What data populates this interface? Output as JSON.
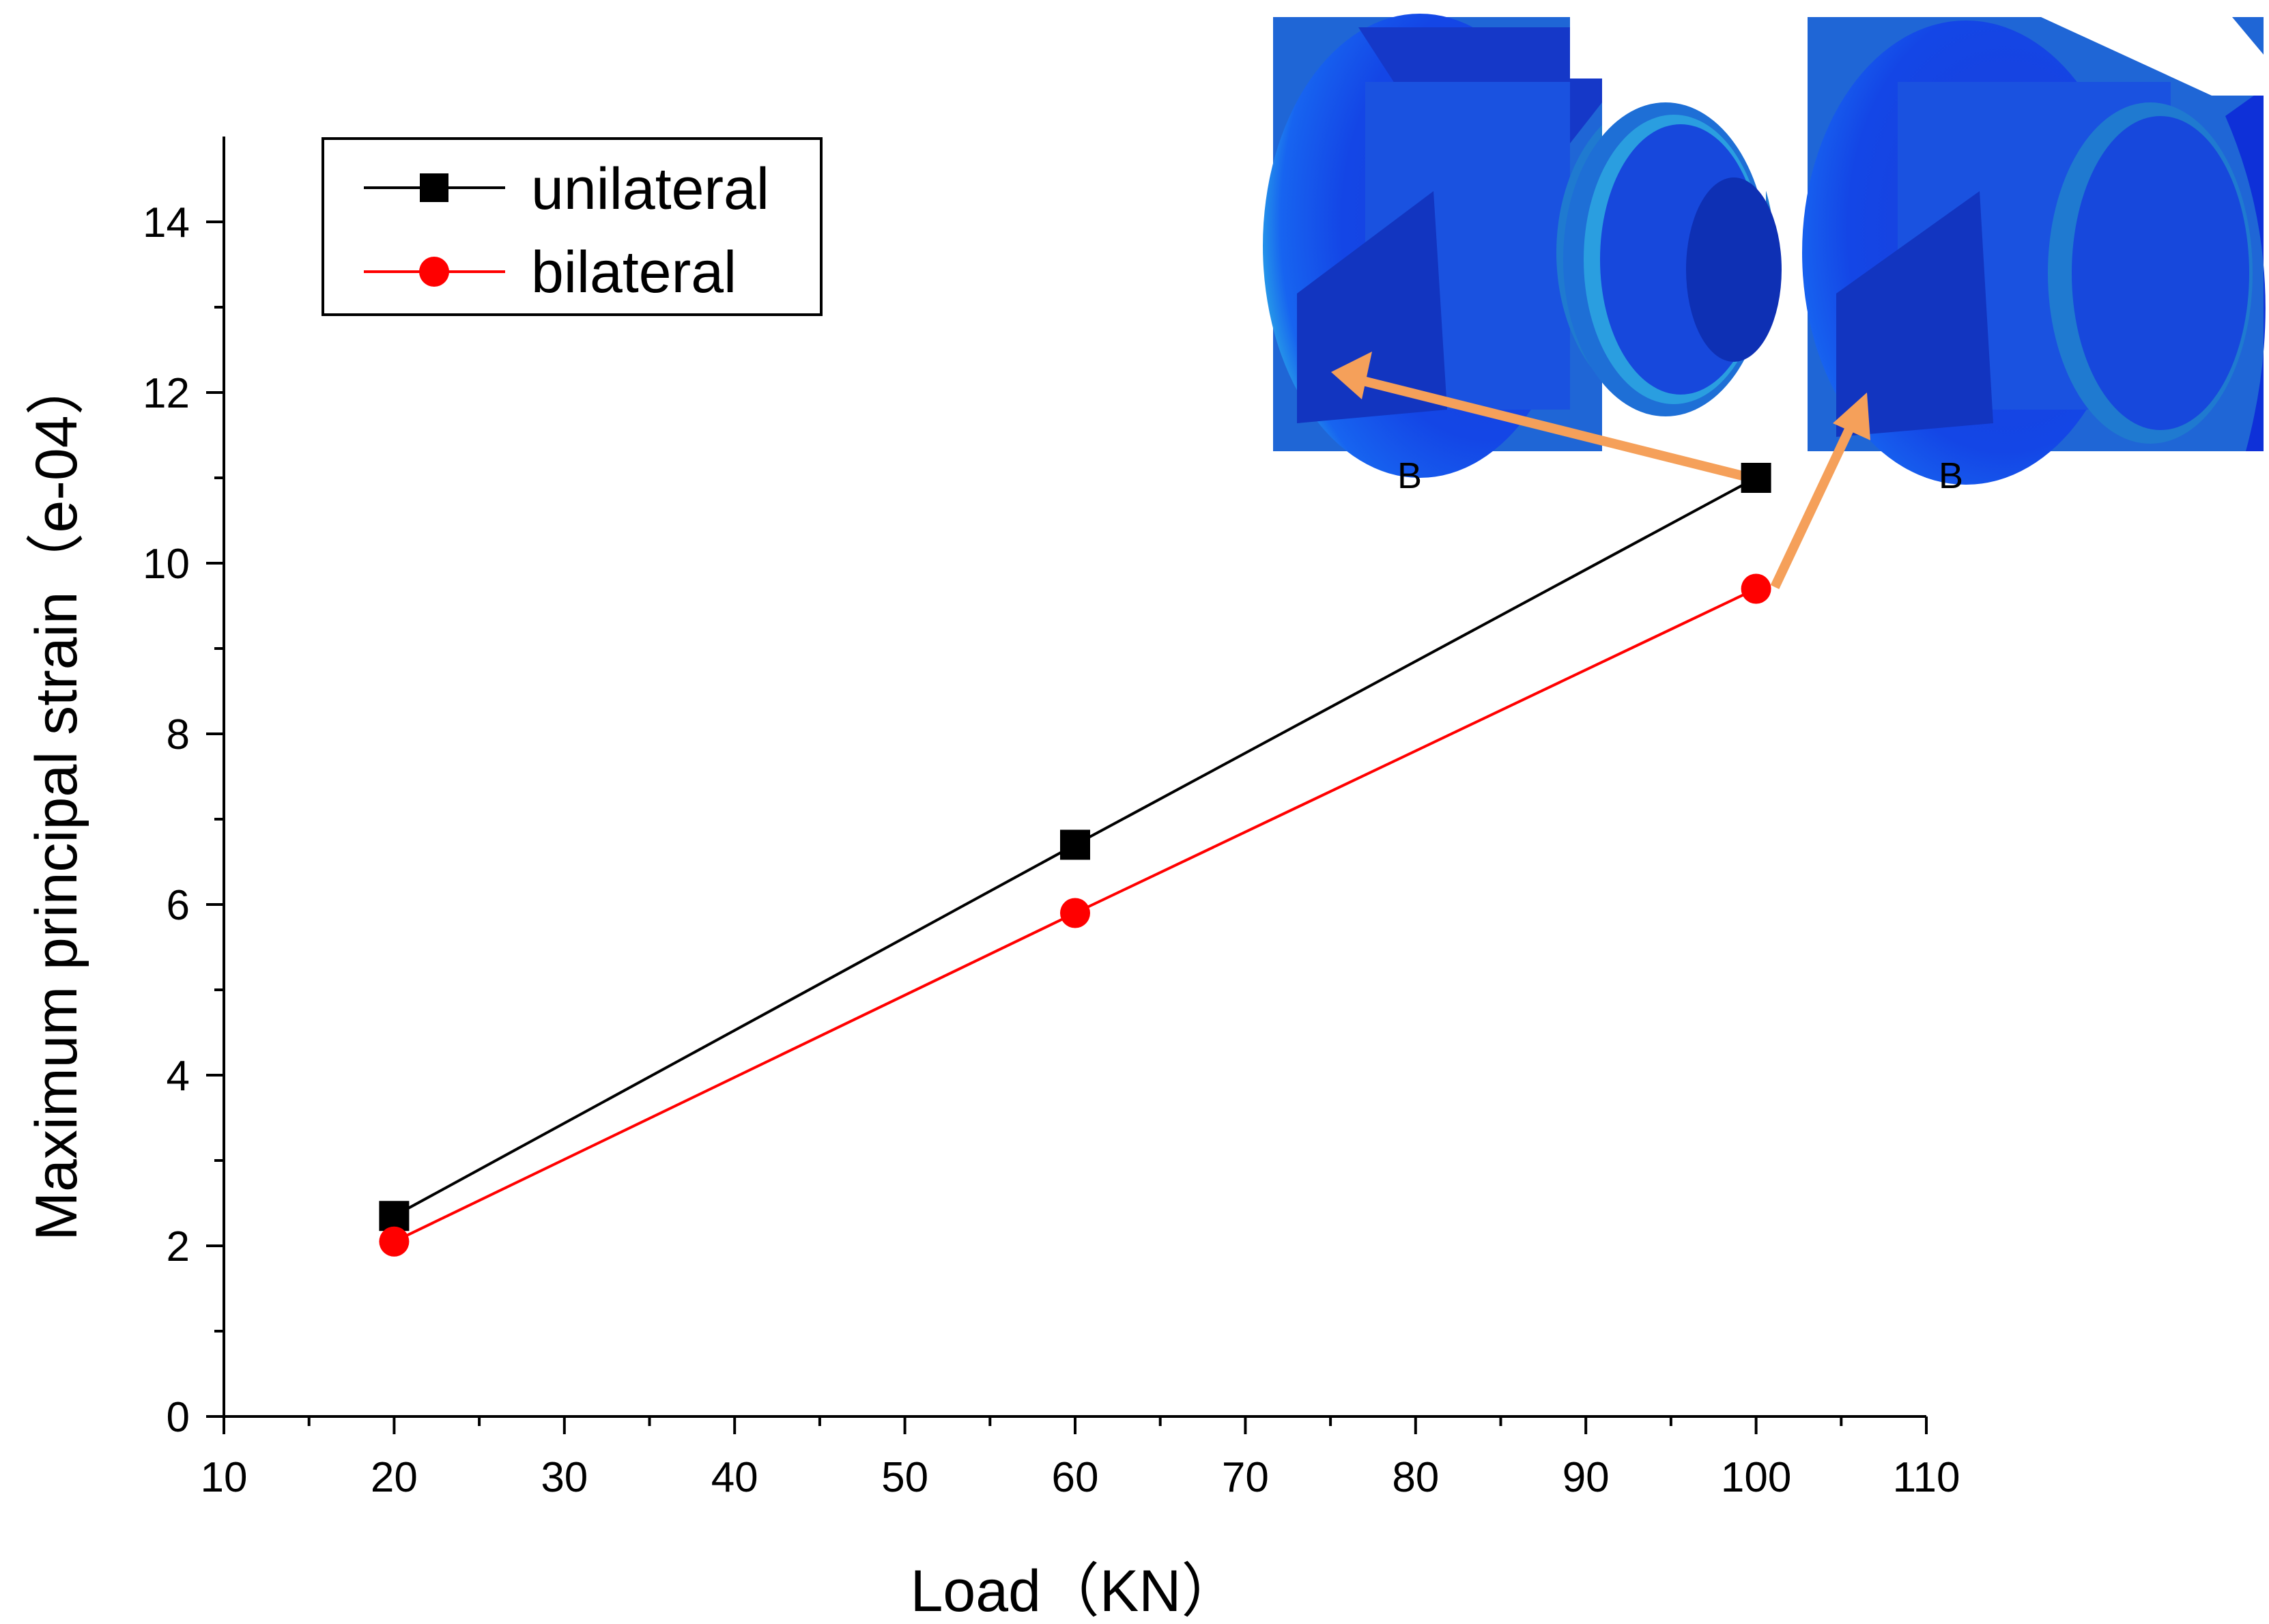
{
  "chart_data": {
    "type": "line",
    "xlabel": "Load（KN）",
    "ylabel": "Maximum principal strain（e-04）",
    "xlim": [
      10,
      110
    ],
    "ylim": [
      0,
      15
    ],
    "x_ticks": [
      "10",
      "20",
      "30",
      "40",
      "50",
      "60",
      "70",
      "80",
      "90",
      "100",
      "110"
    ],
    "y_ticks": [
      "0",
      "2",
      "4",
      "6",
      "8",
      "10",
      "12",
      "14"
    ],
    "grid": false,
    "legend_position": "top-left",
    "series": [
      {
        "name": "unilateral",
        "marker": "square",
        "color": "#000000",
        "x": [
          20,
          60,
          100
        ],
        "y": [
          2.35,
          6.7,
          11.0
        ]
      },
      {
        "name": "bilateral",
        "marker": "circle",
        "color": "#ff0000",
        "x": [
          20,
          60,
          100
        ],
        "y": [
          2.05,
          5.9,
          9.7
        ]
      }
    ],
    "insets": [
      {
        "label": "B",
        "points_to_series": "unilateral"
      },
      {
        "label": "B",
        "points_to_series": "bilateral"
      }
    ],
    "annotation_arrow_color": "#f5a05a"
  }
}
